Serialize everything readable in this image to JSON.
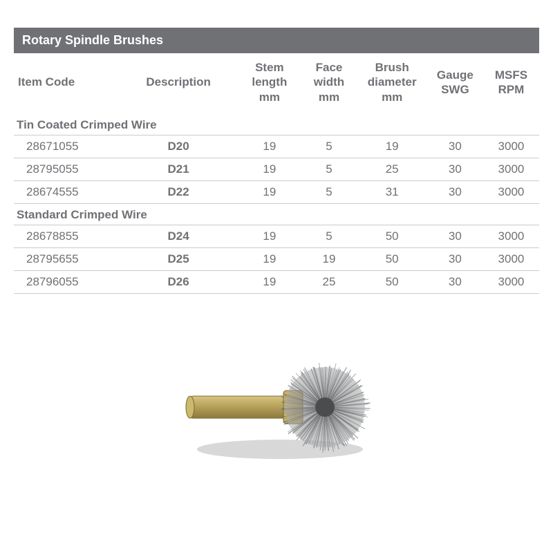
{
  "title": "Rotary Spindle Brushes",
  "columns": {
    "item": "Item Code",
    "desc": "Description",
    "stem": "Stem\nlength\nmm",
    "face": "Face\nwidth\nmm",
    "brush": "Brush\ndiameter\nmm",
    "gauge": "Gauge\nSWG",
    "msfs": "MSFS\nRPM"
  },
  "sections": [
    {
      "label": "Tin Coated Crimped Wire",
      "rows": [
        {
          "item": "28671055",
          "desc": "D20",
          "stem": "19",
          "face": "5",
          "brush": "19",
          "gauge": "30",
          "msfs": "3000"
        },
        {
          "item": "28795055",
          "desc": "D21",
          "stem": "19",
          "face": "5",
          "brush": "25",
          "gauge": "30",
          "msfs": "3000"
        },
        {
          "item": "28674555",
          "desc": "D22",
          "stem": "19",
          "face": "5",
          "brush": "31",
          "gauge": "30",
          "msfs": "3000"
        }
      ]
    },
    {
      "label": "Standard Crimped Wire",
      "rows": [
        {
          "item": "28678855",
          "desc": "D24",
          "stem": "19",
          "face": "5",
          "brush": "50",
          "gauge": "30",
          "msfs": "3000"
        },
        {
          "item": "28795655",
          "desc": "D25",
          "stem": "19",
          "face": "19",
          "brush": "50",
          "gauge": "30",
          "msfs": "3000"
        },
        {
          "item": "28796055",
          "desc": "D26",
          "stem": "19",
          "face": "25",
          "brush": "50",
          "gauge": "30",
          "msfs": "3000"
        }
      ]
    }
  ],
  "image": {
    "shaft_fill": "#b9a35a",
    "shaft_stroke": "#7a6a34",
    "collar_fill": "#c7b05f",
    "bristle_color": "#8b8c8e",
    "bristle_dark": "#5f6062",
    "shadow_color": "#d8d8d8",
    "background": "#ffffff"
  },
  "style": {
    "title_bg": "#6f7175",
    "title_fg": "#ffffff",
    "text_color": "#6f7175",
    "border_color": "#c9cacb"
  }
}
